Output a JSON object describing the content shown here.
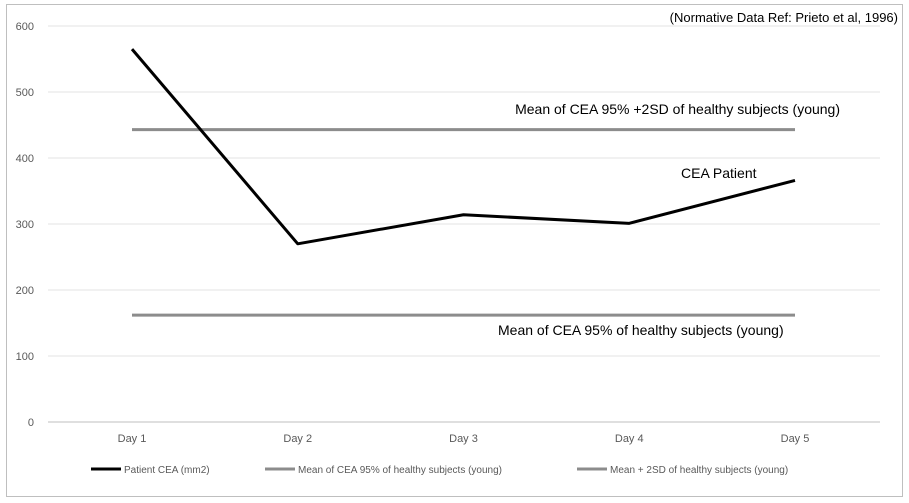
{
  "chart_data": {
    "type": "line",
    "title": "",
    "source_note": "(Normative Data Ref:  Prieto et al, 1996)",
    "xlabel": "",
    "ylabel": "",
    "categories": [
      "Day 1",
      "Day 2",
      "Day 3",
      "Day 4",
      "Day 5"
    ],
    "ylim": [
      0,
      600
    ],
    "yticks": [
      0,
      100,
      200,
      300,
      400,
      500,
      600
    ],
    "grid": "horizontal",
    "legend_position": "bottom",
    "series": [
      {
        "name": "Patient CEA (mm2)",
        "values": [
          565,
          270,
          314,
          301,
          366
        ],
        "color": "#000000"
      },
      {
        "name": "Mean of CEA 95% of healthy subjects (young)",
        "values": [
          162,
          162,
          162,
          162,
          162
        ],
        "color": "#8c8c8c"
      },
      {
        "name": "Mean + 2SD of healthy subjects (young)",
        "values": [
          443,
          443,
          443,
          443,
          443
        ],
        "color": "#8c8c8c"
      }
    ],
    "annotations": {
      "upper_line": "Mean of CEA 95% +2SD of healthy subjects (young)",
      "lower_line": "Mean of CEA 95% of healthy subjects (young)",
      "patient_line": "CEA Patient"
    }
  }
}
